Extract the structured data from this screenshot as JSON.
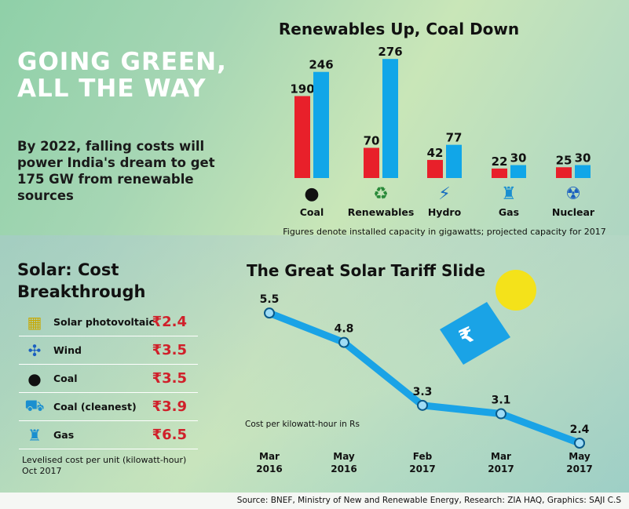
{
  "headline": "GOING GREEN, ALL THE WAY",
  "subhead": "By 2022, falling costs will power India's dream to get 175 GW from renewable sources",
  "chart_data": [
    {
      "type": "bar",
      "title": "Renewables Up, Coal Down",
      "categories": [
        "Coal",
        "Renewables",
        "Hydro",
        "Gas",
        "Nuclear"
      ],
      "icons": [
        "coal-icon",
        "recycle-icon",
        "hydro-icon",
        "gas-rig-icon",
        "nuclear-plant-icon"
      ],
      "series": [
        {
          "values": [
            190,
            70,
            42,
            22,
            25
          ],
          "color": "#e8202a"
        },
        {
          "values": [
            246,
            276,
            77,
            30,
            30
          ],
          "color": "#11a6e8"
        }
      ],
      "note": "Figures denote installed capacity in gigawatts; projected capacity for 2017"
    },
    {
      "type": "line",
      "title": "The Great Solar Tariff Slide",
      "categories": [
        "Mar 2016",
        "May 2016",
        "Feb 2017",
        "Mar 2017",
        "May 2017"
      ],
      "values": [
        5.5,
        4.8,
        3.3,
        3.1,
        2.4
      ],
      "ylabel": "Cost per kilowatt-hour in Rs",
      "color": "#1aa3e6"
    }
  ],
  "cost": {
    "title": "Solar: Cost Breakthrough",
    "rows": [
      {
        "label": "Solar photovoltaic",
        "value": "₹2.4",
        "icon": "solar-panel-icon"
      },
      {
        "label": "Wind",
        "value": "₹3.5",
        "icon": "wind-turbine-icon"
      },
      {
        "label": "Coal",
        "value": "₹3.5",
        "icon": "coal-icon"
      },
      {
        "label": "Coal (cleanest)",
        "value": "₹3.9",
        "icon": "coal-plant-icon"
      },
      {
        "label": "Gas",
        "value": "₹6.5",
        "icon": "gas-rig-icon"
      }
    ],
    "note1": "Levelised cost per unit (kilowatt-hour)",
    "note2": "Oct 2017"
  },
  "source": "Source: BNEF, Ministry of New and Renewable Energy, Research: ZIA HAQ, Graphics: SAJI C.S"
}
